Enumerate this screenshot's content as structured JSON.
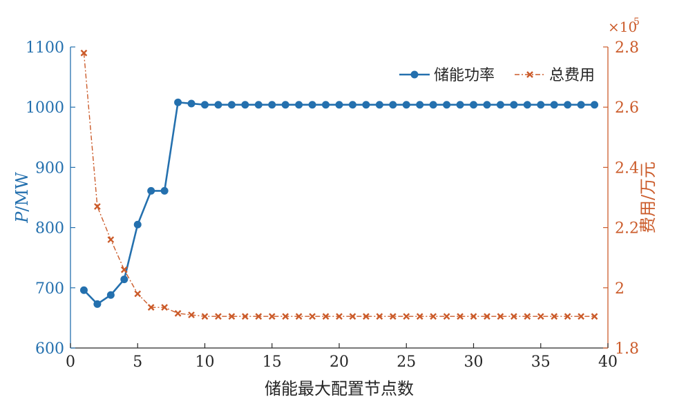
{
  "colors": {
    "left": "#2470AE",
    "right": "#CB5B2A",
    "axis": "#262626"
  },
  "chart_data": {
    "type": "line",
    "xlabel": "储能最大配置节点数",
    "x_ticks": [
      0,
      5,
      10,
      15,
      20,
      25,
      30,
      35,
      40
    ],
    "xlim": [
      0,
      40
    ],
    "y_left": {
      "label_italic": "P",
      "label_rest": "/MW",
      "ylim": [
        600,
        1100
      ],
      "ticks": [
        600,
        700,
        800,
        900,
        1000,
        1100
      ]
    },
    "y_right": {
      "label": "费用/万元",
      "ylim": [
        1.8,
        2.8
      ],
      "ticks": [
        1.8,
        2.0,
        2.2,
        2.4,
        2.6,
        2.8
      ],
      "tick_labels": [
        "1.8",
        "2",
        "2.2",
        "2.4",
        "2.6",
        "2.8"
      ],
      "exponent_base": "×10",
      "exponent_power": "5"
    },
    "legend_position": "top-right",
    "series": [
      {
        "name": "储能功率",
        "axis": "left",
        "marker": "circle",
        "line": "solid",
        "x": [
          1,
          2,
          3,
          4,
          5,
          6,
          7,
          8,
          9,
          10,
          11,
          12,
          13,
          14,
          15,
          16,
          17,
          18,
          19,
          20,
          21,
          22,
          23,
          24,
          25,
          26,
          27,
          28,
          29,
          30,
          31,
          32,
          33,
          34,
          35,
          36,
          37,
          38,
          39
        ],
        "values": [
          696,
          673,
          688,
          714,
          805,
          861,
          861,
          1008,
          1006,
          1004,
          1004,
          1004,
          1004,
          1004,
          1004,
          1004,
          1004,
          1004,
          1004,
          1004,
          1004,
          1004,
          1004,
          1004,
          1004,
          1004,
          1004,
          1004,
          1004,
          1004,
          1004,
          1004,
          1004,
          1004,
          1004,
          1004,
          1004,
          1004,
          1004
        ]
      },
      {
        "name": "总费用",
        "axis": "right",
        "marker": "x",
        "line": "dash-dot",
        "x": [
          1,
          2,
          3,
          4,
          5,
          6,
          7,
          8,
          9,
          10,
          11,
          12,
          13,
          14,
          15,
          16,
          17,
          18,
          19,
          20,
          21,
          22,
          23,
          24,
          25,
          26,
          27,
          28,
          29,
          30,
          31,
          32,
          33,
          34,
          35,
          36,
          37,
          38,
          39
        ],
        "values": [
          2.78,
          2.27,
          2.16,
          2.06,
          1.98,
          1.935,
          1.935,
          1.915,
          1.91,
          1.905,
          1.905,
          1.905,
          1.905,
          1.905,
          1.905,
          1.905,
          1.905,
          1.905,
          1.905,
          1.905,
          1.905,
          1.905,
          1.905,
          1.905,
          1.905,
          1.905,
          1.905,
          1.905,
          1.905,
          1.905,
          1.905,
          1.905,
          1.905,
          1.905,
          1.905,
          1.905,
          1.905,
          1.905,
          1.905
        ]
      }
    ]
  }
}
